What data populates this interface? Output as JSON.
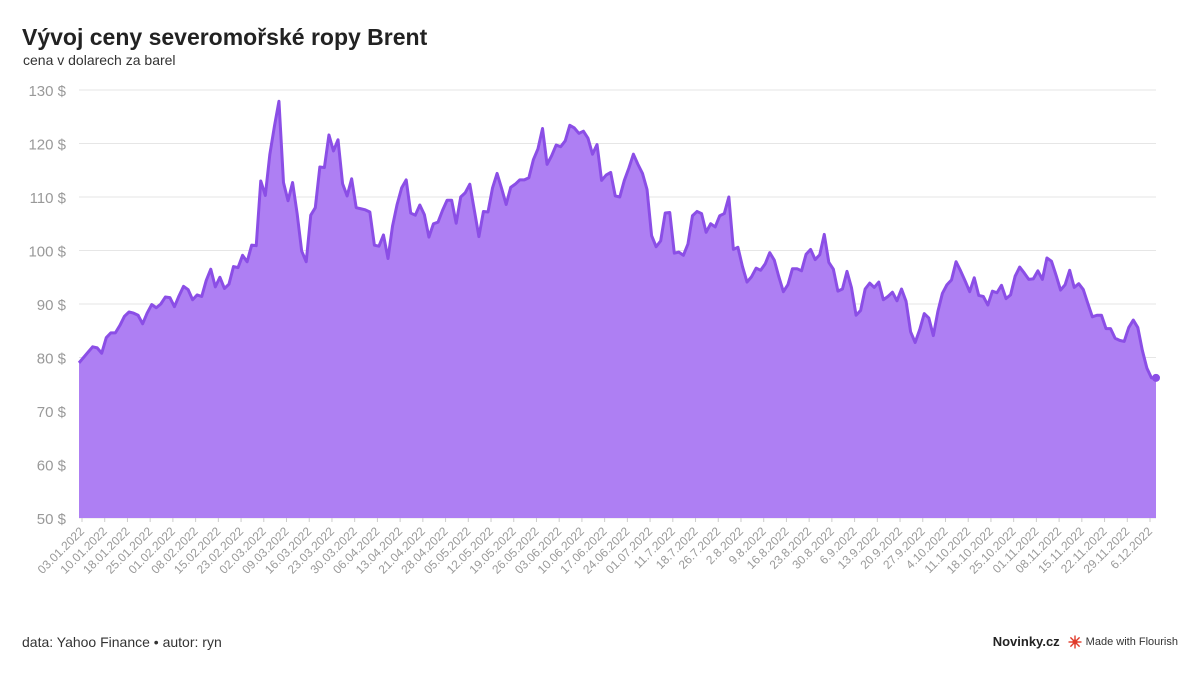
{
  "header": {
    "title": "Vývoj ceny severomořské ropy Brent",
    "subtitle": "cena v dolarech za barel"
  },
  "footer": {
    "source": "data: Yahoo Finance • autor: ryn",
    "brand": "Novinky.cz",
    "made_with": "Made with Flourish"
  },
  "colors": {
    "line": "#8b4ee6",
    "fill": "#ae7ff3",
    "grid": "#e6e6e6",
    "axis_text": "#999999"
  },
  "chart_data": {
    "type": "area",
    "ylim": [
      50,
      130
    ],
    "yticks": [
      50,
      60,
      70,
      80,
      90,
      100,
      110,
      120,
      130
    ],
    "y_unit": "$",
    "grid": true,
    "x_tick_labels": [
      "03.01.2022",
      "10.01.2022",
      "18.01.2022",
      "25.01.2022",
      "01.02.2022",
      "08.02.2022",
      "15.02.2022",
      "23.02.2022",
      "02.03.2022",
      "09.03.2022",
      "16.03.2022",
      "23.03.2022",
      "30.03.2022",
      "06.04.2022",
      "13.04.2022",
      "21.04.2022",
      "28.04.2022",
      "05.05.2022",
      "12.05.2022",
      "19.05.2022",
      "26.05.2022",
      "03.06.2022",
      "10.06.2022",
      "17.06.2022",
      "24.06.2022",
      "01.07.2022",
      "11.7.2022",
      "18.7.2022",
      "26.7.2022",
      "2.8.2022",
      "9.8.2022",
      "16.8.2022",
      "23.8.2022",
      "30.8.2022",
      "6.9.2022",
      "13.9.2022",
      "20.9.2022",
      "27.9.2022",
      "4.10.2022",
      "11.10.2022",
      "18.10.2022",
      "25.10.2022",
      "01.11.2022",
      "08.11.2022",
      "15.11.2022",
      "22.11.2022",
      "29.11.2022",
      "6.12.2022"
    ],
    "values": [
      79,
      80,
      81,
      82,
      81.8,
      80.8,
      83.7,
      84.6,
      84.6,
      86,
      87.7,
      88.5,
      88.3,
      87.9,
      86.3,
      88.3,
      89.9,
      89.3,
      90,
      91.3,
      91.2,
      89.5,
      91.5,
      93.3,
      92.7,
      90.8,
      91.7,
      91.4,
      94.4,
      96.5,
      93.2,
      95,
      92.9,
      93.7,
      97,
      96.8,
      99.1,
      97.9,
      101,
      100.9,
      113,
      110.3,
      118,
      123.2,
      127.9,
      112.7,
      109.3,
      112.7,
      106.9,
      99.9,
      97.9,
      106.6,
      108,
      115.6,
      115.5,
      121.6,
      118.6,
      120.7,
      112.5,
      110.2,
      113.4,
      108,
      107.8,
      107.6,
      107.2,
      101,
      100.8,
      102.9,
      98.5,
      104.6,
      108.6,
      111.7,
      113.2,
      107,
      106.6,
      108.5,
      106.7,
      102.5,
      105,
      105.3,
      107.5,
      109.4,
      109.4,
      105.1,
      110,
      110.8,
      112.4,
      107.5,
      102.6,
      107.3,
      107.2,
      111.7,
      114.4,
      111.6,
      108.6,
      111.8,
      112.4,
      113.2,
      113.2,
      113.6,
      117,
      119,
      122.8,
      116.1,
      117.7,
      119.7,
      119.4,
      120.5,
      123.4,
      122.9,
      121.9,
      122.3,
      121,
      118,
      119.8,
      113.1,
      114.1,
      114.6,
      110.2,
      110,
      113.1,
      115.4,
      118,
      116.1,
      114.4,
      111.4,
      102.8,
      100.7,
      101.8,
      107,
      107.1,
      99.5,
      99.7,
      99.1,
      101.2,
      106.5,
      107.3,
      106.9,
      103.4,
      105,
      104.4,
      106.5,
      106.9,
      110,
      100.2,
      100.6,
      97,
      94.1,
      95.1,
      96.7,
      96.3,
      97.5,
      99.6,
      98.2,
      95.1,
      92.3,
      93.6,
      96.6,
      96.6,
      96.2,
      99.3,
      100.2,
      98.3,
      99.2,
      103,
      97.8,
      96.5,
      92.4,
      92.8,
      96.1,
      93,
      87.9,
      88.8,
      92.8,
      93.9,
      93.1,
      94.1,
      90.8,
      91.4,
      92.2,
      90.6,
      92.8,
      90.5,
      84.8,
      82.8,
      85.2,
      88.2,
      87.4,
      84.1,
      88.6,
      92,
      93.6,
      94.5,
      97.9,
      96.2,
      94.3,
      92.3,
      94.9,
      91.6,
      91.4,
      89.8,
      92.4,
      92.1,
      93.5,
      91,
      91.7,
      95.2,
      96.9,
      95.8,
      94.6,
      94.7,
      96.2,
      94.6,
      98.6,
      98,
      95.4,
      92.6,
      93.6,
      96.3,
      93.1,
      93.8,
      92.7,
      90.1,
      87.6,
      87.9,
      87.9,
      85.4,
      85.4,
      83.6,
      83.2,
      83,
      85.6,
      87,
      85.6,
      81.3,
      78,
      76.2,
      76.2
    ]
  }
}
